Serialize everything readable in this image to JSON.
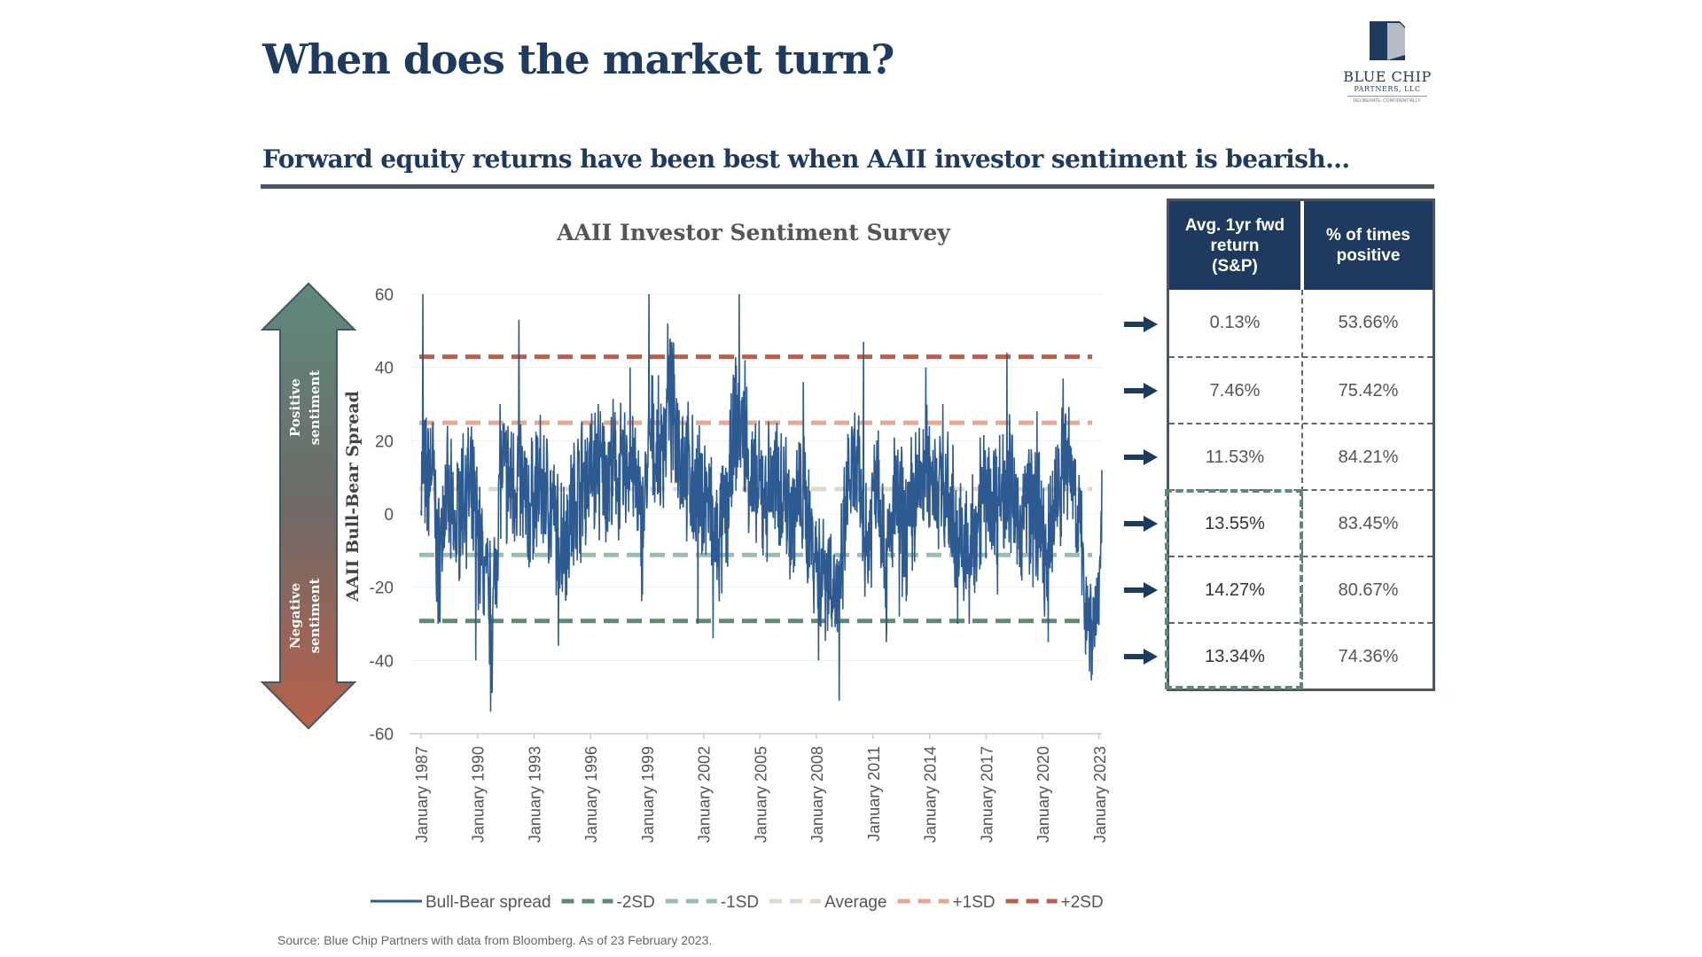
{
  "header": {
    "title": "When does the market turn?",
    "subtitle": "Forward equity returns have been best when AAII investor sentiment is bearish..."
  },
  "logo": {
    "name": "BLUE CHIP",
    "sub": "PARTNERS, LLC",
    "tagline": "DELIBERATE. CONFIDENTIALLY.",
    "icon": "cube-logo-icon"
  },
  "chart_data": {
    "type": "line",
    "title": "AAII Investor Sentiment Survey",
    "ylabel": "AAII Bull-Bear Spread",
    "ylim": [
      -60,
      60
    ],
    "yticks": [
      -60,
      -40,
      -20,
      0,
      20,
      40,
      60
    ],
    "xlim": [
      1987,
      2023.15
    ],
    "xticks": [
      "January 1987",
      "January 1990",
      "January 1993",
      "January 1996",
      "January 1999",
      "January 2002",
      "January 2005",
      "January 2008",
      "January 2011",
      "January 2014",
      "January 2017",
      "January 2020",
      "January 2023"
    ],
    "grid": "horizontal",
    "sentiment_labels": {
      "positive": "Positive sentiment",
      "negative": "Negative sentiment"
    },
    "series": [
      {
        "name": "Bull-Bear spread",
        "color": "#2d5a91",
        "anchors": [
          [
            1987.0,
            10
          ],
          [
            1987.3,
            8
          ],
          [
            1987.6,
            15
          ],
          [
            1987.9,
            -15
          ],
          [
            1988.3,
            5
          ],
          [
            1988.8,
            -5
          ],
          [
            1989.3,
            8
          ],
          [
            1989.8,
            2
          ],
          [
            1990.3,
            -15
          ],
          [
            1990.8,
            -30
          ],
          [
            1991.2,
            12
          ],
          [
            1991.7,
            8
          ],
          [
            1992.2,
            10
          ],
          [
            1992.7,
            0
          ],
          [
            1993.2,
            8
          ],
          [
            1993.7,
            5
          ],
          [
            1994.2,
            -5
          ],
          [
            1994.7,
            -5
          ],
          [
            1995.2,
            5
          ],
          [
            1995.7,
            10
          ],
          [
            1996.2,
            12
          ],
          [
            1996.7,
            10
          ],
          [
            1997.2,
            12
          ],
          [
            1997.7,
            10
          ],
          [
            1998.2,
            15
          ],
          [
            1998.7,
            -5
          ],
          [
            1999.2,
            20
          ],
          [
            1999.7,
            15
          ],
          [
            2000.2,
            30
          ],
          [
            2000.7,
            20
          ],
          [
            2001.2,
            10
          ],
          [
            2001.7,
            5
          ],
          [
            2002.2,
            5
          ],
          [
            2002.7,
            -10
          ],
          [
            2003.2,
            0
          ],
          [
            2003.7,
            25
          ],
          [
            2004.2,
            20
          ],
          [
            2004.7,
            5
          ],
          [
            2005.2,
            5
          ],
          [
            2005.7,
            8
          ],
          [
            2006.2,
            8
          ],
          [
            2006.7,
            0
          ],
          [
            2007.2,
            5
          ],
          [
            2007.7,
            -5
          ],
          [
            2008.2,
            -15
          ],
          [
            2008.7,
            -15
          ],
          [
            2009.2,
            -25
          ],
          [
            2009.7,
            10
          ],
          [
            2010.2,
            10
          ],
          [
            2010.7,
            -10
          ],
          [
            2011.2,
            15
          ],
          [
            2011.7,
            -15
          ],
          [
            2012.2,
            5
          ],
          [
            2012.7,
            -5
          ],
          [
            2013.2,
            5
          ],
          [
            2013.7,
            10
          ],
          [
            2014.2,
            12
          ],
          [
            2014.7,
            5
          ],
          [
            2015.2,
            0
          ],
          [
            2015.7,
            -10
          ],
          [
            2016.2,
            -10
          ],
          [
            2016.7,
            5
          ],
          [
            2017.2,
            5
          ],
          [
            2017.7,
            5
          ],
          [
            2018.2,
            10
          ],
          [
            2018.7,
            -5
          ],
          [
            2019.2,
            5
          ],
          [
            2019.7,
            0
          ],
          [
            2020.2,
            -15
          ],
          [
            2020.7,
            5
          ],
          [
            2021.2,
            15
          ],
          [
            2021.7,
            10
          ],
          [
            2022.2,
            -20
          ],
          [
            2022.7,
            -30
          ],
          [
            2023.15,
            -15
          ]
        ],
        "spikes": [
          [
            1987.1,
            60
          ],
          [
            1987.9,
            -30
          ],
          [
            1989.9,
            -40
          ],
          [
            1990.7,
            -54
          ],
          [
            1991.2,
            30
          ],
          [
            1992.2,
            53
          ],
          [
            1994.3,
            -36
          ],
          [
            1996.4,
            30
          ],
          [
            1998.1,
            40
          ],
          [
            1999.1,
            60
          ],
          [
            2000.1,
            52
          ],
          [
            2001.7,
            -30
          ],
          [
            2002.5,
            -34
          ],
          [
            2003.9,
            60
          ],
          [
            2004.2,
            42
          ],
          [
            2007.3,
            36
          ],
          [
            2008.1,
            -40
          ],
          [
            2009.2,
            -51
          ],
          [
            2010.5,
            47
          ],
          [
            2011.7,
            -35
          ],
          [
            2012.4,
            -28
          ],
          [
            2013.8,
            40
          ],
          [
            2014.7,
            30
          ],
          [
            2015.5,
            -30
          ],
          [
            2016.1,
            -30
          ],
          [
            2017.6,
            -22
          ],
          [
            2018.1,
            44
          ],
          [
            2019.5,
            -20
          ],
          [
            2019.7,
            28
          ],
          [
            2020.3,
            -35
          ],
          [
            2021.1,
            37
          ],
          [
            2022.5,
            -43
          ],
          [
            2022.9,
            -30
          ],
          [
            2023.15,
            12
          ]
        ]
      },
      {
        "name": "-2SD",
        "value": -29.2,
        "color": "#5e8a72"
      },
      {
        "name": "-1SD",
        "value": -11.2,
        "color": "#9cbcb2"
      },
      {
        "name": "Average",
        "value": 6.8,
        "color": "#e3d7ca"
      },
      {
        "name": "+1SD",
        "value": 24.9,
        "color": "#e6a893"
      },
      {
        "name": "+2SD",
        "value": 42.9,
        "color": "#b8614a"
      }
    ]
  },
  "table": {
    "headers": [
      [
        "Avg. 1yr fwd",
        "return",
        "(S&P)"
      ],
      [
        "% of times",
        "positive"
      ]
    ],
    "rows": [
      {
        "avg_return": "0.13%",
        "pct_positive": "53.66%"
      },
      {
        "avg_return": "7.46%",
        "pct_positive": "75.42%"
      },
      {
        "avg_return": "11.53%",
        "pct_positive": "84.21%"
      },
      {
        "avg_return": "13.55%",
        "pct_positive": "83.45%"
      },
      {
        "avg_return": "14.27%",
        "pct_positive": "80.67%"
      },
      {
        "avg_return": "13.34%",
        "pct_positive": "74.36%"
      }
    ]
  },
  "source": "Source: Blue Chip Partners with data from Bloomberg. As of 23 February 2023."
}
